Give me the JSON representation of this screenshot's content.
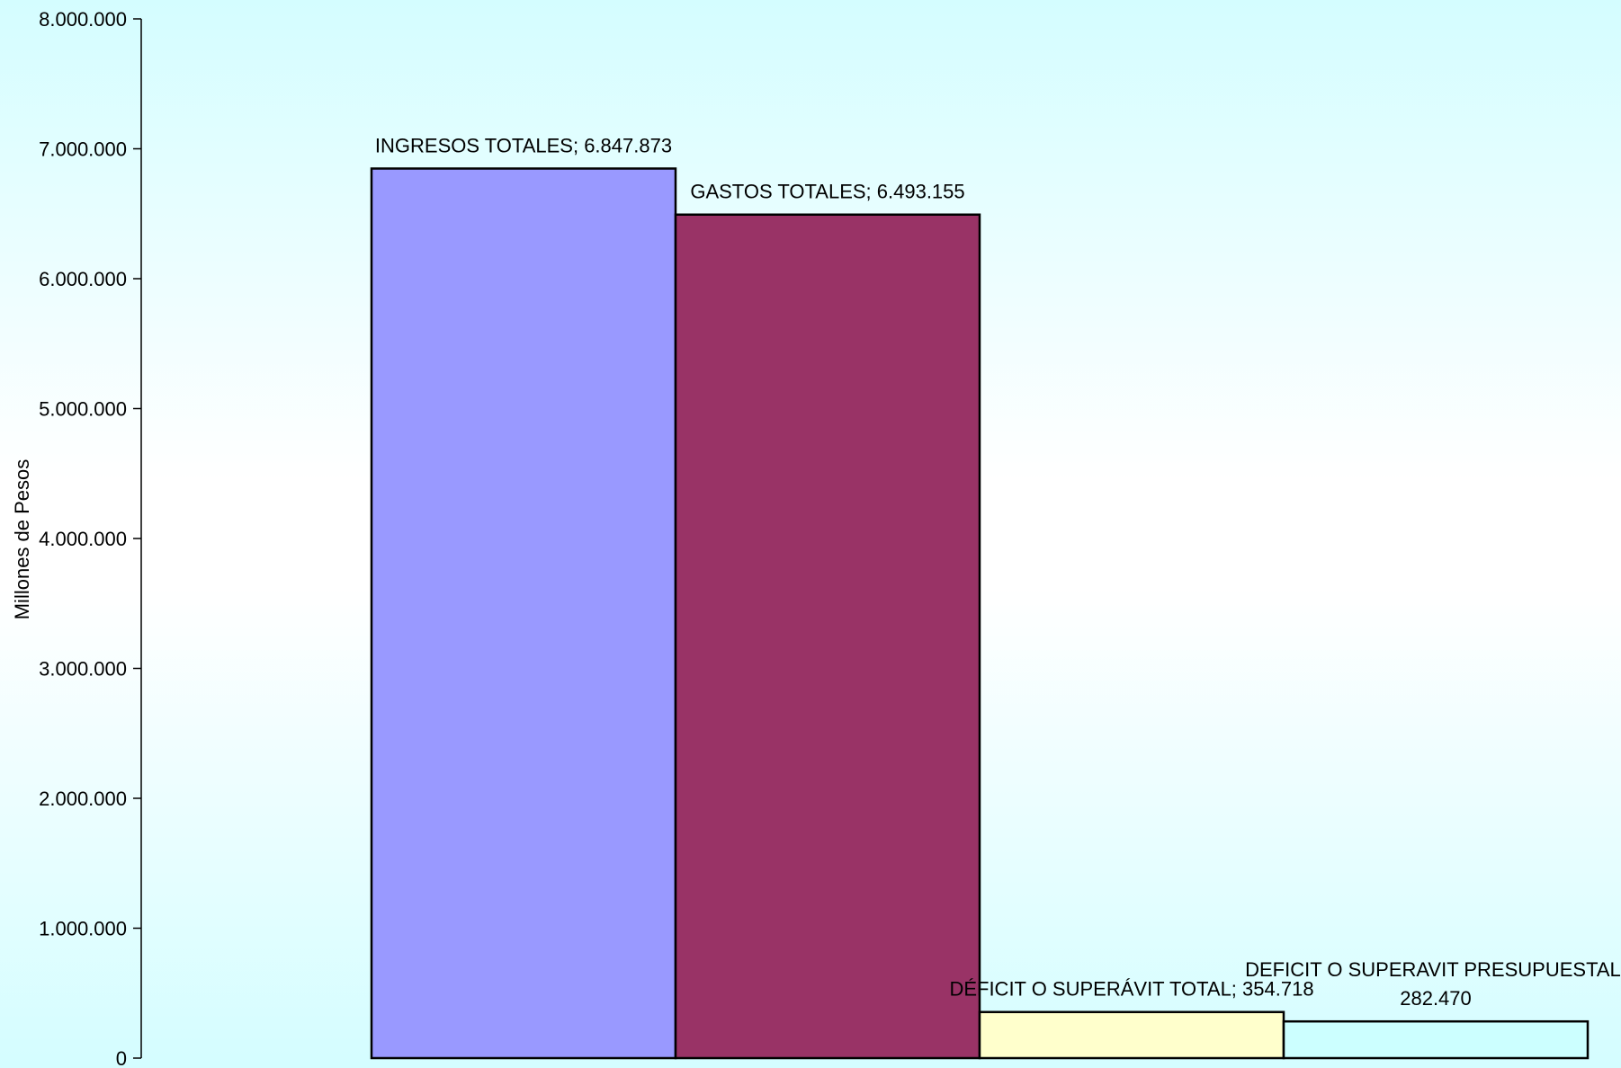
{
  "chart_data": {
    "type": "bar",
    "title": "",
    "xlabel": "",
    "ylabel": "Millones de Pesos",
    "ylim": [
      0,
      8000000
    ],
    "yticks": [
      0,
      1000000,
      2000000,
      3000000,
      4000000,
      5000000,
      6000000,
      7000000,
      8000000
    ],
    "ytick_labels": [
      "0",
      "1.000.000",
      "2.000.000",
      "3.000.000",
      "4.000.000",
      "5.000.000",
      "6.000.000",
      "7.000.000",
      "8.000.000"
    ],
    "grid": false,
    "legend": "none",
    "bars": [
      {
        "category": "INGRESOS TOTALES",
        "value": 6847873,
        "label_lines": [
          "INGRESOS TOTALES; 6.847.873"
        ],
        "color": "#9999ff"
      },
      {
        "category": "GASTOS  TOTALES",
        "value": 6493155,
        "label_lines": [
          "GASTOS  TOTALES; 6.493.155"
        ],
        "color": "#993366"
      },
      {
        "category": "DÉFICIT O SUPERÁVIT TOTAL",
        "value": 354718,
        "label_lines": [
          "DÉFICIT O SUPERÁVIT TOTAL; 354.718"
        ],
        "color": "#ffffcc"
      },
      {
        "category": "DEFICIT O SUPERAVIT PRESUPUESTAL",
        "value": 282470,
        "label_lines": [
          "DEFICIT O SUPERAVIT PRESUPUESTAL;",
          "282.470"
        ],
        "color": "#ccffff"
      }
    ]
  }
}
